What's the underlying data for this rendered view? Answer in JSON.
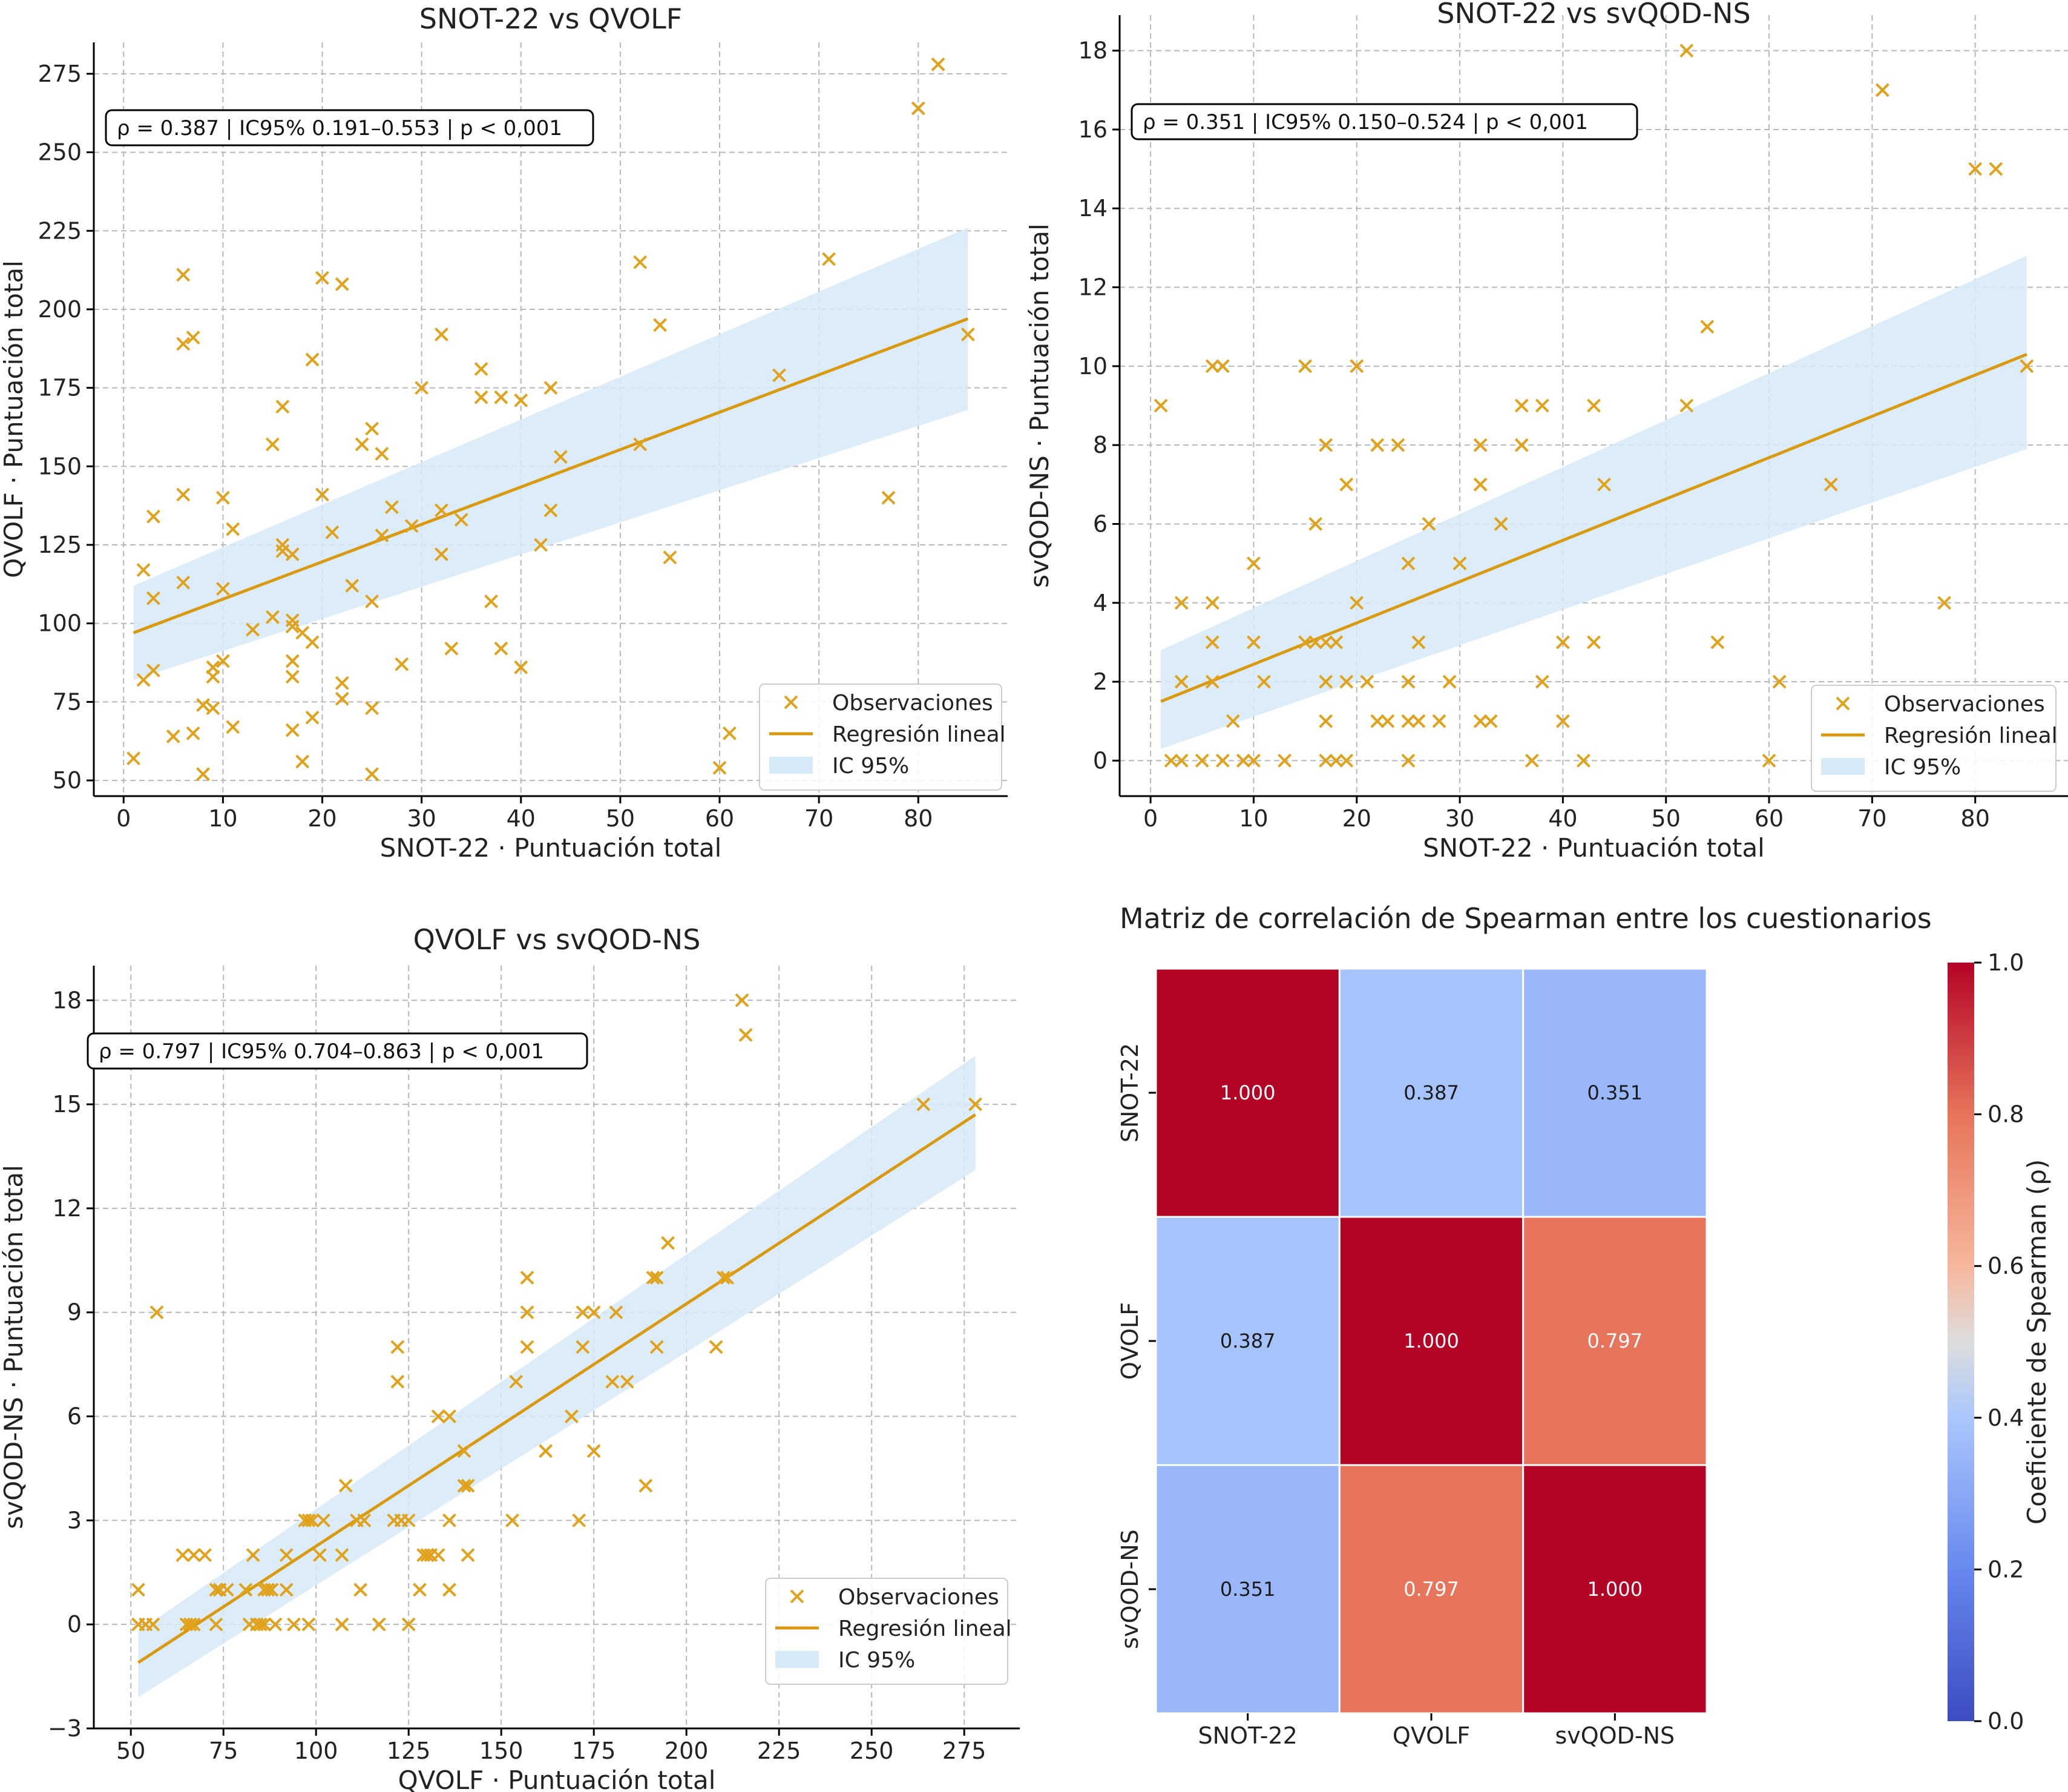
{
  "colors": {
    "points": "#e0a21a",
    "line": "#d99a12",
    "ci_band": "#d6eaf8",
    "grid": "#b8b8b8"
  },
  "chart_data": [
    {
      "type": "scatter",
      "title": "SNOT-22 vs QVOLF",
      "xlabel": "SNOT-22 · Puntuación total",
      "ylabel": "QVOLF · Puntuación total",
      "xlim": [
        -3,
        89
      ],
      "ylim": [
        45,
        285
      ],
      "xticks": [
        0,
        10,
        20,
        30,
        40,
        50,
        60,
        70,
        80
      ],
      "yticks": [
        50,
        75,
        100,
        125,
        150,
        175,
        200,
        225,
        250,
        275
      ],
      "grid": true,
      "legend_position": "lower-right",
      "legend": [
        "Observaciones",
        "Regresión lineal",
        "IC 95%"
      ],
      "annotation": "ρ = 0.387  |  IC95% 0.191–0.553  |  p < 0,001",
      "regression": {
        "x": [
          1,
          85
        ],
        "y": [
          97,
          197
        ]
      },
      "ci_band": {
        "x": [
          1,
          85
        ],
        "upper": [
          112,
          226
        ],
        "lower": [
          82,
          168
        ]
      },
      "points": [
        [
          1,
          57
        ],
        [
          2,
          117
        ],
        [
          2,
          82
        ],
        [
          3,
          85
        ],
        [
          3,
          108
        ],
        [
          3,
          134
        ],
        [
          5,
          64
        ],
        [
          6,
          211
        ],
        [
          6,
          189
        ],
        [
          6,
          141
        ],
        [
          6,
          113
        ],
        [
          7,
          191
        ],
        [
          7,
          65
        ],
        [
          8,
          52
        ],
        [
          8,
          74
        ],
        [
          9,
          73
        ],
        [
          9,
          83
        ],
        [
          9,
          86
        ],
        [
          10,
          140
        ],
        [
          10,
          111
        ],
        [
          10,
          88
        ],
        [
          11,
          130
        ],
        [
          11,
          67
        ],
        [
          13,
          98
        ],
        [
          15,
          157
        ],
        [
          15,
          102
        ],
        [
          16,
          125
        ],
        [
          16,
          169
        ],
        [
          16,
          123
        ],
        [
          17,
          101
        ],
        [
          17,
          122
        ],
        [
          17,
          99
        ],
        [
          17,
          88
        ],
        [
          17,
          83
        ],
        [
          17,
          66
        ],
        [
          18,
          56
        ],
        [
          18,
          97
        ],
        [
          19,
          94
        ],
        [
          19,
          70
        ],
        [
          19,
          184
        ],
        [
          20,
          210
        ],
        [
          20,
          141
        ],
        [
          21,
          129
        ],
        [
          22,
          208
        ],
        [
          22,
          81
        ],
        [
          22,
          76
        ],
        [
          23,
          112
        ],
        [
          24,
          157
        ],
        [
          25,
          162
        ],
        [
          25,
          107
        ],
        [
          25,
          73
        ],
        [
          25,
          52
        ],
        [
          26,
          154
        ],
        [
          26,
          128
        ],
        [
          27,
          137
        ],
        [
          28,
          87
        ],
        [
          29,
          131
        ],
        [
          30,
          175
        ],
        [
          32,
          192
        ],
        [
          32,
          136
        ],
        [
          32,
          122
        ],
        [
          33,
          92
        ],
        [
          34,
          133
        ],
        [
          36,
          181
        ],
        [
          36,
          172
        ],
        [
          37,
          107
        ],
        [
          38,
          172
        ],
        [
          38,
          92
        ],
        [
          40,
          171
        ],
        [
          40,
          86
        ],
        [
          42,
          125
        ],
        [
          43,
          175
        ],
        [
          43,
          136
        ],
        [
          44,
          153
        ],
        [
          52,
          215
        ],
        [
          52,
          157
        ],
        [
          54,
          195
        ],
        [
          55,
          121
        ],
        [
          60,
          54
        ],
        [
          61,
          65
        ],
        [
          66,
          179
        ],
        [
          71,
          216
        ],
        [
          77,
          140
        ],
        [
          80,
          264
        ],
        [
          82,
          278
        ],
        [
          85,
          192
        ]
      ]
    },
    {
      "type": "scatter",
      "title": "SNOT-22 vs svQOD-NS",
      "xlabel": "SNOT-22 · Puntuación total",
      "ylabel": "svQOD-NS · Puntuación total",
      "xlim": [
        -3,
        89
      ],
      "ylim": [
        -0.9,
        18.9
      ],
      "xticks": [
        0,
        10,
        20,
        30,
        40,
        50,
        60,
        70,
        80
      ],
      "yticks": [
        0,
        2,
        4,
        6,
        8,
        10,
        12,
        14,
        16,
        18
      ],
      "grid": true,
      "legend_position": "lower-right",
      "legend": [
        "Observaciones",
        "Regresión lineal",
        "IC 95%"
      ],
      "annotation": "ρ = 0.351  |  IC95% 0.150–0.524  |  p < 0,001",
      "regression": {
        "x": [
          1,
          85
        ],
        "y": [
          1.5,
          10.3
        ]
      },
      "ci_band": {
        "x": [
          1,
          85
        ],
        "upper": [
          2.8,
          12.8
        ],
        "lower": [
          0.3,
          7.9
        ]
      },
      "points": [
        [
          1,
          9
        ],
        [
          2,
          0
        ],
        [
          3,
          4
        ],
        [
          3,
          2
        ],
        [
          3,
          0
        ],
        [
          5,
          0
        ],
        [
          6,
          10
        ],
        [
          6,
          4
        ],
        [
          6,
          3
        ],
        [
          6,
          2
        ],
        [
          7,
          10
        ],
        [
          7,
          0
        ],
        [
          8,
          1
        ],
        [
          9,
          0
        ],
        [
          9,
          0
        ],
        [
          10,
          5
        ],
        [
          10,
          3
        ],
        [
          10,
          0
        ],
        [
          11,
          2
        ],
        [
          13,
          0
        ],
        [
          15,
          10
        ],
        [
          15,
          3
        ],
        [
          16,
          6
        ],
        [
          16,
          3
        ],
        [
          17,
          8
        ],
        [
          17,
          3
        ],
        [
          17,
          2
        ],
        [
          17,
          1
        ],
        [
          17,
          0
        ],
        [
          18,
          3
        ],
        [
          18,
          0
        ],
        [
          19,
          7
        ],
        [
          19,
          2
        ],
        [
          19,
          0
        ],
        [
          20,
          10
        ],
        [
          20,
          4
        ],
        [
          21,
          2
        ],
        [
          22,
          8
        ],
        [
          22,
          1
        ],
        [
          23,
          1
        ],
        [
          24,
          8
        ],
        [
          25,
          5
        ],
        [
          25,
          2
        ],
        [
          25,
          1
        ],
        [
          25,
          0
        ],
        [
          26,
          3
        ],
        [
          26,
          1
        ],
        [
          27,
          6
        ],
        [
          28,
          1
        ],
        [
          29,
          2
        ],
        [
          30,
          5
        ],
        [
          32,
          8
        ],
        [
          32,
          7
        ],
        [
          32,
          1
        ],
        [
          33,
          1
        ],
        [
          34,
          6
        ],
        [
          36,
          9
        ],
        [
          36,
          8
        ],
        [
          37,
          0
        ],
        [
          38,
          9
        ],
        [
          38,
          2
        ],
        [
          40,
          3
        ],
        [
          40,
          1
        ],
        [
          42,
          0
        ],
        [
          43,
          9
        ],
        [
          43,
          3
        ],
        [
          44,
          7
        ],
        [
          52,
          18
        ],
        [
          52,
          9
        ],
        [
          54,
          11
        ],
        [
          55,
          3
        ],
        [
          60,
          0
        ],
        [
          61,
          2
        ],
        [
          66,
          7
        ],
        [
          71,
          17
        ],
        [
          77,
          4
        ],
        [
          80,
          15
        ],
        [
          82,
          15
        ],
        [
          85,
          10
        ]
      ]
    },
    {
      "type": "scatter",
      "title": "QVOLF vs svQOD-NS",
      "xlabel": "QVOLF · Puntuación total",
      "ylabel": "svQOD-NS · Puntuación total",
      "xlim": [
        40,
        290
      ],
      "ylim": [
        -3,
        19
      ],
      "xticks": [
        50,
        75,
        100,
        125,
        150,
        175,
        200,
        225,
        250,
        275
      ],
      "yticks": [
        -3,
        0,
        3,
        6,
        9,
        12,
        15,
        18
      ],
      "grid": true,
      "legend_position": "lower-right",
      "legend": [
        "Observaciones",
        "Regresión lineal",
        "IC 95%"
      ],
      "annotation": "ρ = 0.797  |  IC95% 0.704–0.863  |  p < 0,001",
      "regression": {
        "x": [
          52,
          278
        ],
        "y": [
          -1.1,
          14.7
        ]
      },
      "ci_band": {
        "x": [
          52,
          278
        ],
        "upper": [
          -0.2,
          16.4
        ],
        "lower": [
          -2.1,
          13.1
        ]
      },
      "points": [
        [
          52,
          1
        ],
        [
          52,
          0
        ],
        [
          54,
          0
        ],
        [
          56,
          0
        ],
        [
          57,
          9
        ],
        [
          64,
          2
        ],
        [
          65,
          0
        ],
        [
          66,
          0
        ],
        [
          66,
          0
        ],
        [
          67,
          2
        ],
        [
          67,
          0
        ],
        [
          70,
          2
        ],
        [
          73,
          1
        ],
        [
          73,
          0
        ],
        [
          74,
          1
        ],
        [
          76,
          1
        ],
        [
          81,
          1
        ],
        [
          82,
          0
        ],
        [
          83,
          2
        ],
        [
          84,
          0
        ],
        [
          85,
          0
        ],
        [
          86,
          1
        ],
        [
          86,
          0
        ],
        [
          87,
          1
        ],
        [
          88,
          1
        ],
        [
          89,
          0
        ],
        [
          92,
          1
        ],
        [
          92,
          2
        ],
        [
          94,
          0
        ],
        [
          97,
          3
        ],
        [
          98,
          3
        ],
        [
          98,
          0
        ],
        [
          99,
          3
        ],
        [
          101,
          2
        ],
        [
          102,
          3
        ],
        [
          107,
          2
        ],
        [
          107,
          0
        ],
        [
          108,
          4
        ],
        [
          111,
          3
        ],
        [
          112,
          1
        ],
        [
          113,
          3
        ],
        [
          117,
          0
        ],
        [
          121,
          3
        ],
        [
          122,
          8
        ],
        [
          122,
          7
        ],
        [
          123,
          3
        ],
        [
          125,
          0
        ],
        [
          125,
          3
        ],
        [
          128,
          1
        ],
        [
          129,
          2
        ],
        [
          130,
          2
        ],
        [
          131,
          2
        ],
        [
          133,
          6
        ],
        [
          133,
          2
        ],
        [
          136,
          6
        ],
        [
          136,
          3
        ],
        [
          136,
          1
        ],
        [
          140,
          5
        ],
        [
          140,
          4
        ],
        [
          141,
          4
        ],
        [
          141,
          2
        ],
        [
          153,
          3
        ],
        [
          154,
          7
        ],
        [
          157,
          10
        ],
        [
          157,
          9
        ],
        [
          157,
          8
        ],
        [
          162,
          5
        ],
        [
          169,
          6
        ],
        [
          171,
          3
        ],
        [
          172,
          8
        ],
        [
          172,
          9
        ],
        [
          175,
          9
        ],
        [
          175,
          5
        ],
        [
          180,
          7
        ],
        [
          181,
          9
        ],
        [
          184,
          7
        ],
        [
          189,
          4
        ],
        [
          191,
          10
        ],
        [
          192,
          10
        ],
        [
          192,
          8
        ],
        [
          195,
          11
        ],
        [
          208,
          8
        ],
        [
          210,
          10
        ],
        [
          211,
          10
        ],
        [
          215,
          18
        ],
        [
          216,
          17
        ],
        [
          264,
          15
        ],
        [
          278,
          15
        ]
      ]
    },
    {
      "type": "heatmap",
      "title": "Matriz de correlación de Spearman entre los cuestionarios",
      "row_labels": [
        "SNOT-22",
        "QVOLF",
        "svQOD-NS"
      ],
      "col_labels": [
        "SNOT-22",
        "QVOLF",
        "svQOD-NS"
      ],
      "values": [
        [
          1.0,
          0.387,
          0.351
        ],
        [
          0.387,
          1.0,
          0.797
        ],
        [
          0.351,
          0.797,
          1.0
        ]
      ],
      "cell_labels": [
        [
          "1.000",
          "0.387",
          "0.351"
        ],
        [
          "0.387",
          "1.000",
          "0.797"
        ],
        [
          "0.351",
          "0.797",
          "1.000"
        ]
      ],
      "colorbar": {
        "label": "Coeficiente de Spearman (ρ)",
        "min": 0.0,
        "max": 1.0,
        "ticks": [
          "0.0",
          "0.2",
          "0.4",
          "0.6",
          "0.8",
          "1.0"
        ],
        "colormap": "coolwarm"
      }
    }
  ]
}
